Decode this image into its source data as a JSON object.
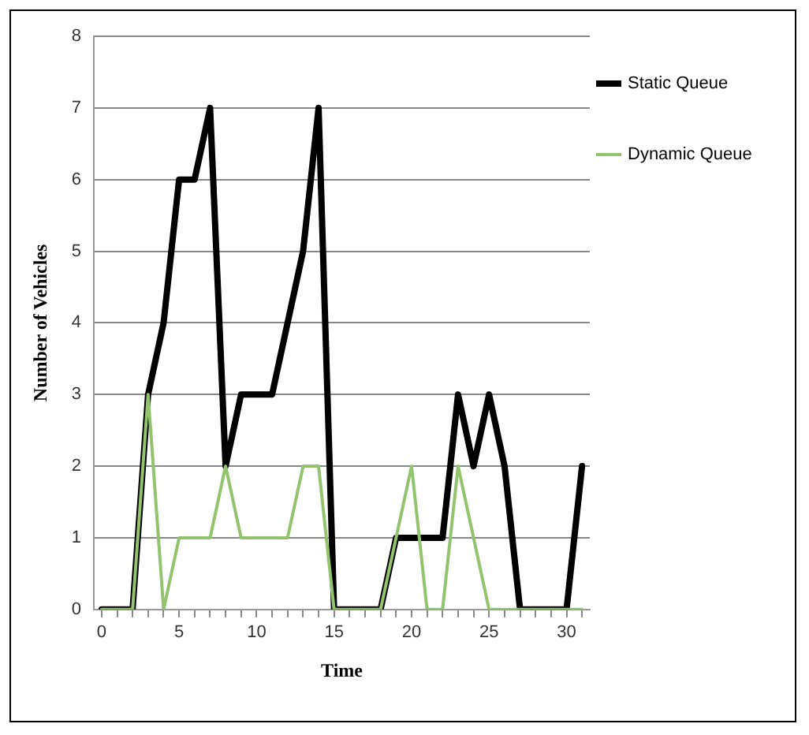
{
  "chart_data": {
    "type": "line",
    "xlabel": "Time",
    "ylabel": "Number of Vehicles",
    "x": [
      0,
      1,
      2,
      3,
      4,
      5,
      6,
      7,
      8,
      9,
      10,
      11,
      12,
      13,
      14,
      15,
      16,
      17,
      18,
      19,
      20,
      21,
      22,
      23,
      24,
      25,
      26,
      27,
      28,
      29,
      30,
      31
    ],
    "series": [
      {
        "name": "Static Queue",
        "color": "#000000",
        "values": [
          0,
          0,
          0,
          3,
          4,
          6,
          6,
          7,
          2,
          3,
          3,
          3,
          4,
          5,
          7,
          0,
          0,
          0,
          0,
          1,
          1,
          1,
          1,
          3,
          2,
          3,
          2,
          0,
          0,
          0,
          0,
          2
        ]
      },
      {
        "name": "Dynamic Queue",
        "color": "#92c46e",
        "values": [
          0,
          0,
          0,
          3,
          0,
          1,
          1,
          1,
          2,
          1,
          1,
          1,
          1,
          2,
          2,
          0,
          0,
          0,
          0,
          1,
          2,
          0,
          0,
          2,
          1,
          0,
          0,
          0,
          0,
          0,
          0,
          0
        ]
      }
    ],
    "xlim": [
      -0.5,
      31.5
    ],
    "xticks": [
      0,
      {
        "value": 1,
        "label": null
      },
      {
        "value": 2,
        "label": null
      },
      {
        "value": 3,
        "label": null
      },
      {
        "value": 4,
        "label": null
      },
      5,
      {
        "value": 6,
        "label": null
      },
      {
        "value": 7,
        "label": null
      },
      {
        "value": 8,
        "label": null
      },
      {
        "value": 9,
        "label": null
      },
      10,
      {
        "value": 11,
        "label": null
      },
      {
        "value": 12,
        "label": null
      },
      {
        "value": 13,
        "label": null
      },
      {
        "value": 14,
        "label": null
      },
      15,
      {
        "value": 16,
        "label": null
      },
      {
        "value": 17,
        "label": null
      },
      {
        "value": 18,
        "label": null
      },
      {
        "value": 19,
        "label": null
      },
      20,
      {
        "value": 21,
        "label": null
      },
      {
        "value": 22,
        "label": null
      },
      {
        "value": 23,
        "label": null
      },
      {
        "value": 24,
        "label": null
      },
      25,
      {
        "value": 26,
        "label": null
      },
      {
        "value": 27,
        "label": null
      },
      {
        "value": 28,
        "label": null
      },
      {
        "value": 29,
        "label": null
      },
      30,
      {
        "value": 31,
        "label": null
      }
    ],
    "ylim": [
      0,
      8
    ],
    "yticks": [
      0,
      1,
      2,
      3,
      4,
      5,
      6,
      7,
      8
    ],
    "grid": "y",
    "legend": "right",
    "marker": "none",
    "line_style": "solid"
  }
}
